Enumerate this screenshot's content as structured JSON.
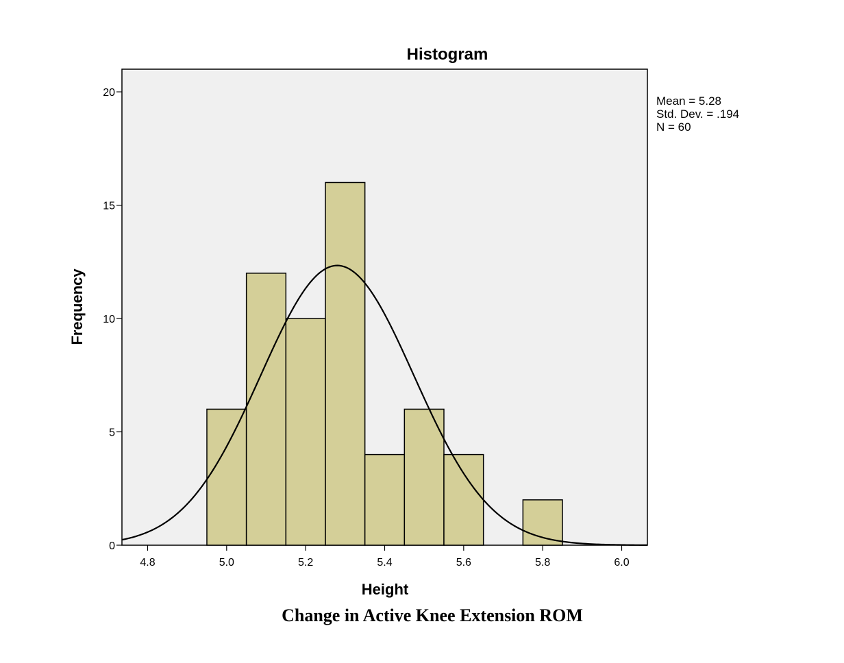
{
  "caption": "Change in Active Knee Extension ROM",
  "chart_data": {
    "type": "bar",
    "title": "Histogram",
    "xlabel": "Height",
    "ylabel": "Frequency",
    "xlim": [
      4.735,
      6.065
    ],
    "ylim": [
      0,
      21
    ],
    "x_ticks": [
      "4.8",
      "5.0",
      "5.2",
      "5.4",
      "5.6",
      "5.8",
      "6.0"
    ],
    "y_ticks": [
      "0",
      "5",
      "10",
      "15",
      "20"
    ],
    "bins": [
      {
        "start": 4.95,
        "end": 5.05,
        "count": 6
      },
      {
        "start": 5.05,
        "end": 5.15,
        "count": 12
      },
      {
        "start": 5.15,
        "end": 5.25,
        "count": 10
      },
      {
        "start": 5.25,
        "end": 5.35,
        "count": 16
      },
      {
        "start": 5.35,
        "end": 5.45,
        "count": 4
      },
      {
        "start": 5.45,
        "end": 5.55,
        "count": 6
      },
      {
        "start": 5.55,
        "end": 5.65,
        "count": 4
      },
      {
        "start": 5.65,
        "end": 5.75,
        "count": 0
      },
      {
        "start": 5.75,
        "end": 5.85,
        "count": 2
      }
    ],
    "normal_curve": {
      "mean": 5.28,
      "sd": 0.194,
      "n": 60,
      "bin_width": 0.1
    },
    "stats": {
      "mean": "Mean = 5.28",
      "std_dev": "Std. Dev. = .194",
      "n": "N = 60"
    },
    "colors": {
      "bar_fill": "#d4cf98",
      "bar_stroke": "#000000",
      "plot_bg": "#f0f0f0",
      "curve": "#000000"
    },
    "grid": false,
    "legend": "none"
  }
}
